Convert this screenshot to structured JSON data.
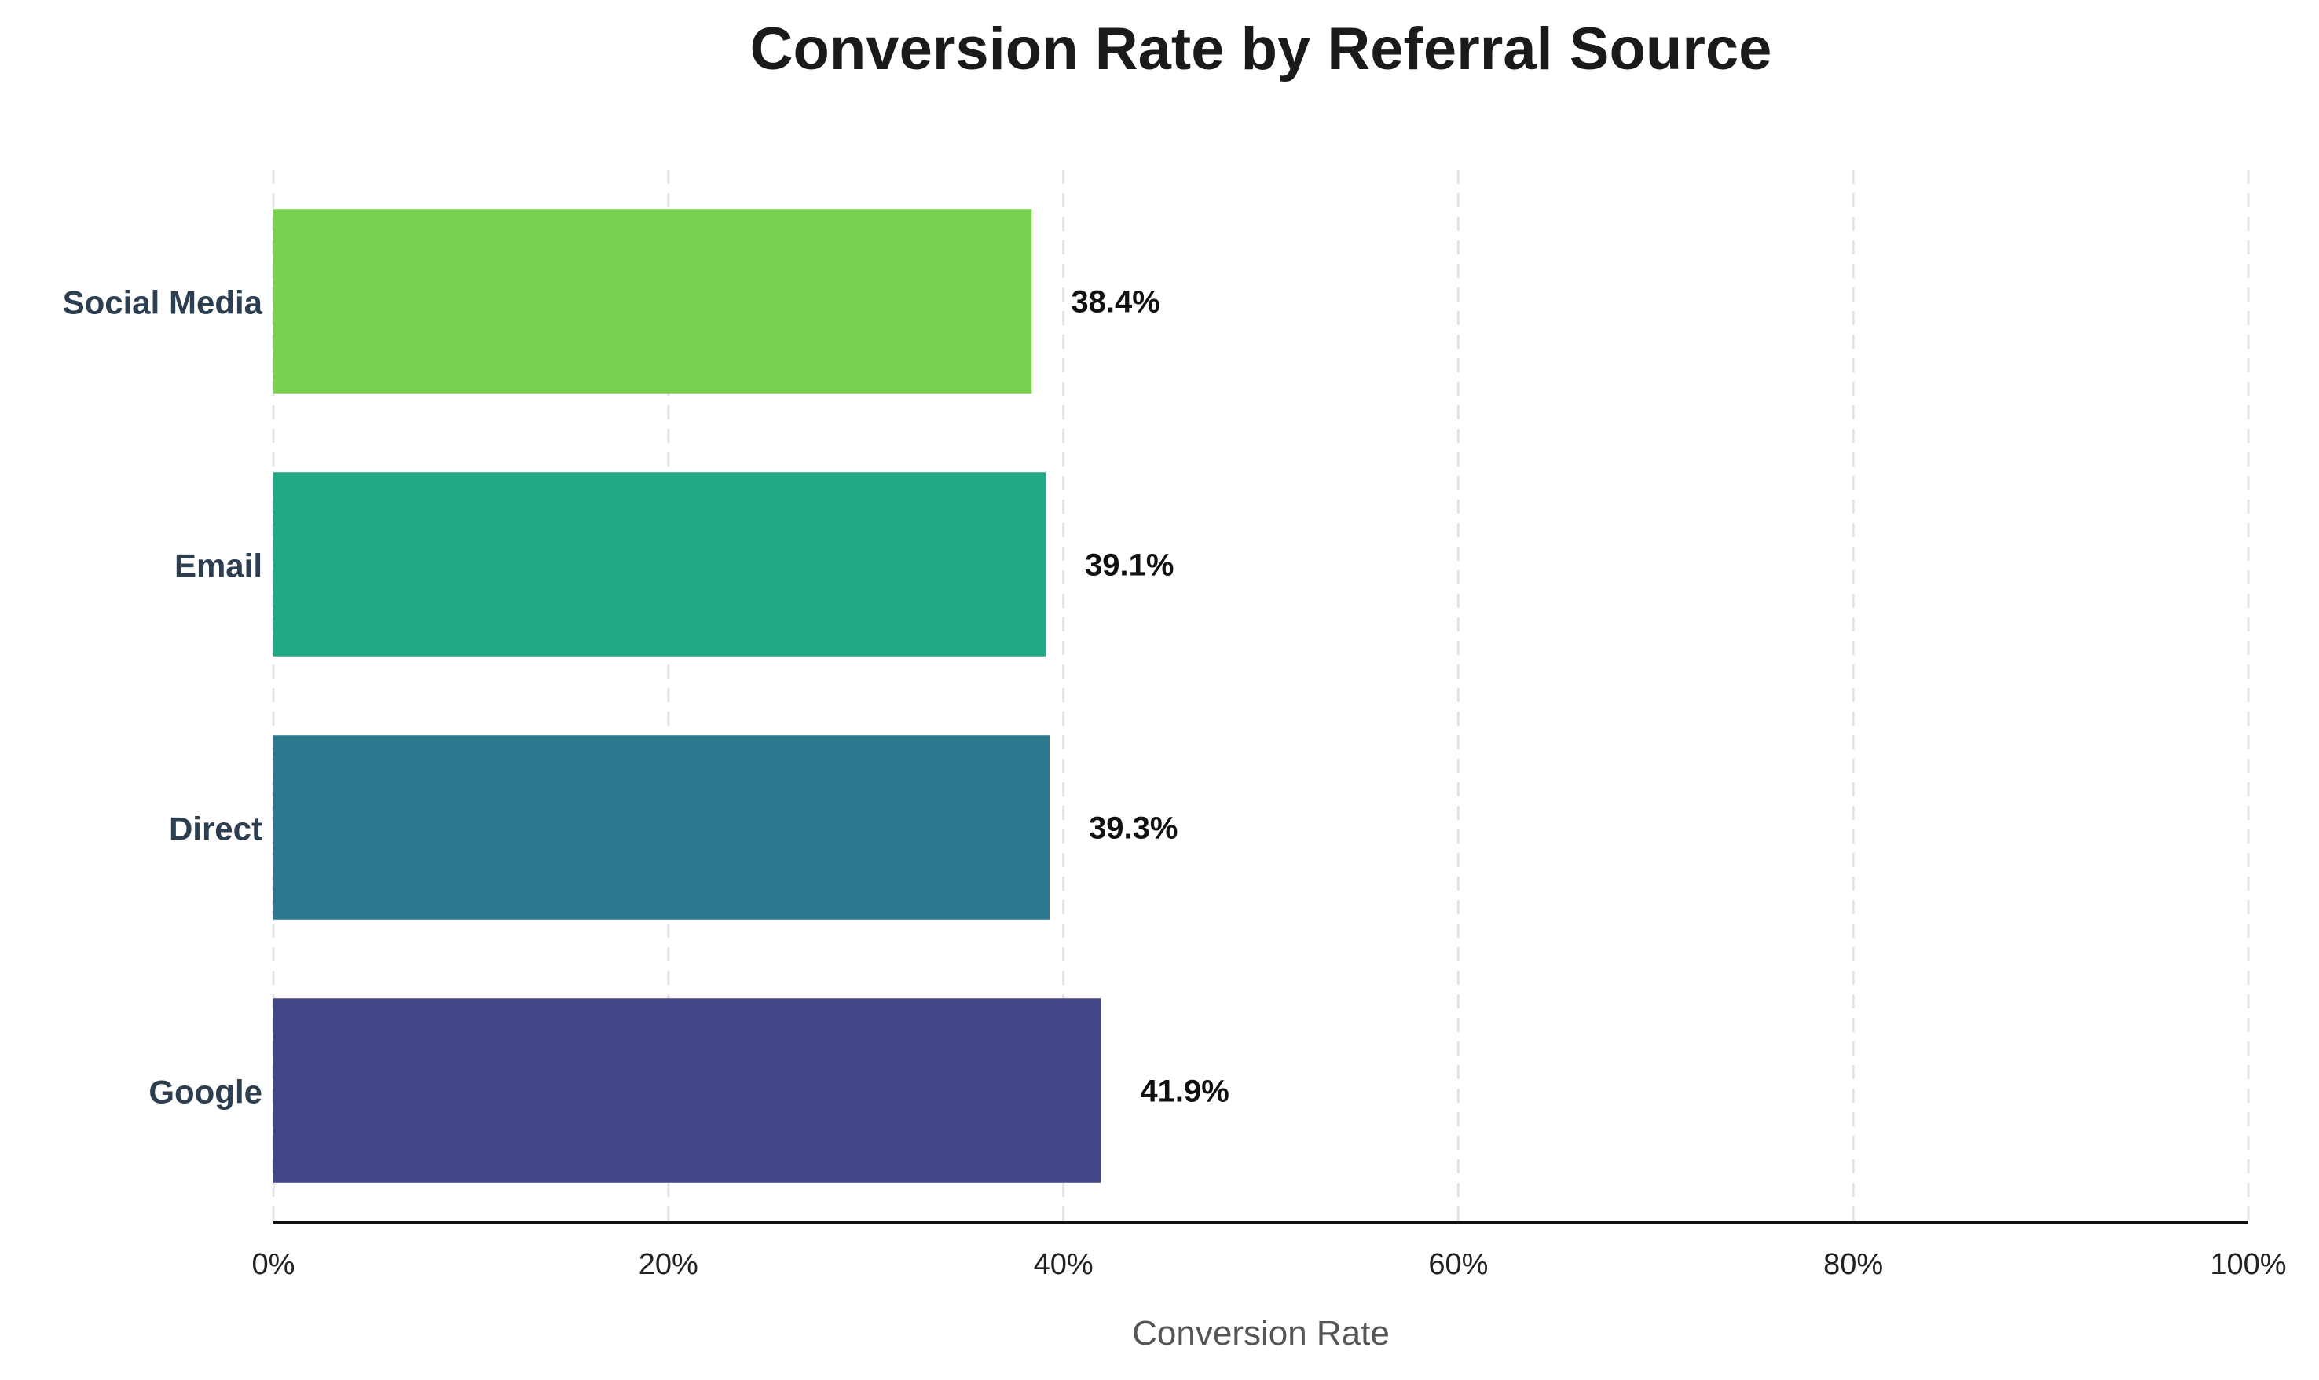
{
  "chart_data": {
    "type": "bar",
    "orientation": "horizontal",
    "title": "Conversion Rate by Referral Source",
    "xlabel": "Conversion Rate",
    "ylabel": "",
    "categories": [
      "Google",
      "Direct",
      "Email",
      "Social Media"
    ],
    "values": [
      0.419,
      0.393,
      0.391,
      0.384
    ],
    "value_labels": [
      "41.9%",
      "39.3%",
      "39.1%",
      "38.4%"
    ],
    "colors": [
      "#424686",
      "#2c788e",
      "#22a884",
      "#7ad151"
    ],
    "xlim": [
      0,
      1
    ],
    "x_ticks": [
      0,
      0.2,
      0.4,
      0.6,
      0.8,
      1.0
    ],
    "x_tick_labels": [
      "0%",
      "20%",
      "40%",
      "60%",
      "80%",
      "100%"
    ],
    "grid": "x-dashed",
    "legend": "none"
  }
}
